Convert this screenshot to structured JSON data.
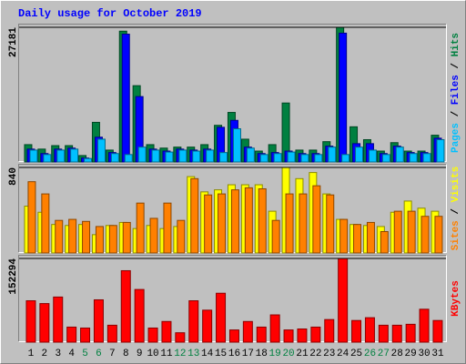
{
  "chart_data": [
    {
      "type": "bar",
      "title": "Daily usage for October 2019",
      "legend_separator": " / ",
      "ylim": [
        0,
        27181
      ],
      "yticks": [
        27181
      ],
      "grid": true,
      "series": [
        {
          "name": "Hits",
          "color": "#008040",
          "values": [
            3500,
            2600,
            3300,
            3300,
            1300,
            8000,
            2400,
            26400,
            15400,
            3500,
            2800,
            3000,
            3000,
            3500,
            7400,
            10000,
            4600,
            2200,
            3500,
            11900,
            2400,
            2400,
            4100,
            27181,
            7100,
            4500,
            2200,
            3900,
            2200,
            2200,
            5400
          ]
        },
        {
          "name": "Files",
          "color": "#0000ff",
          "values": [
            2600,
            1700,
            2600,
            2800,
            800,
            5000,
            1900,
            25800,
            13200,
            2600,
            2200,
            2600,
            2400,
            2600,
            7000,
            8400,
            3000,
            1700,
            1900,
            2200,
            1700,
            1700,
            3200,
            26000,
            3700,
            3700,
            1700,
            3200,
            1900,
            1900,
            4800
          ]
        },
        {
          "name": "Pages",
          "color": "#00c0ff",
          "values": [
            2400,
            1500,
            2400,
            2600,
            700,
            4600,
            1700,
            1500,
            3000,
            2400,
            2000,
            2400,
            2200,
            2400,
            1900,
            6700,
            2800,
            1500,
            1700,
            2000,
            1500,
            1500,
            3000,
            1500,
            3000,
            2400,
            1500,
            3000,
            1700,
            1700,
            4500
          ]
        }
      ]
    },
    {
      "type": "bar",
      "legend_separator": " / ",
      "ylim": [
        0,
        840
      ],
      "yticks": [
        840
      ],
      "grid": true,
      "series": [
        {
          "name": "Visits",
          "color": "#ffff00",
          "values": [
            460,
            400,
            280,
            270,
            280,
            180,
            270,
            300,
            240,
            270,
            240,
            260,
            750,
            600,
            620,
            670,
            670,
            670,
            410,
            840,
            730,
            790,
            580,
            330,
            280,
            270,
            260,
            400,
            510,
            440,
            410
          ]
        },
        {
          "name": "Sites",
          "color": "#ff8000",
          "values": [
            700,
            580,
            320,
            330,
            310,
            260,
            270,
            300,
            490,
            340,
            490,
            320,
            730,
            570,
            580,
            620,
            640,
            630,
            320,
            580,
            580,
            660,
            570,
            330,
            280,
            300,
            210,
            410,
            410,
            360,
            360
          ]
        }
      ]
    },
    {
      "type": "bar",
      "ylim": [
        0,
        152294
      ],
      "yticks": [
        152294
      ],
      "grid": true,
      "categories": [
        "1",
        "2",
        "3",
        "4",
        "5",
        "6",
        "7",
        "8",
        "9",
        "10",
        "11",
        "12",
        "13",
        "14",
        "15",
        "16",
        "17",
        "18",
        "19",
        "20",
        "21",
        "22",
        "23",
        "24",
        "25",
        "26",
        "27",
        "28",
        "29",
        "30",
        "31"
      ],
      "category_colors": [
        "#000000",
        "#000000",
        "#000000",
        "#000000",
        "#008040",
        "#008040",
        "#000000",
        "#000000",
        "#000000",
        "#000000",
        "#000000",
        "#008040",
        "#008040",
        "#000000",
        "#000000",
        "#000000",
        "#000000",
        "#000000",
        "#008040",
        "#008040",
        "#000000",
        "#000000",
        "#000000",
        "#000000",
        "#000000",
        "#008040",
        "#008040",
        "#000000",
        "#000000",
        "#000000",
        "#000000"
      ],
      "series": [
        {
          "name": "KBytes",
          "color": "#ff0000",
          "values": [
            75300,
            70200,
            82100,
            27400,
            25700,
            77000,
            30800,
            130000,
            95800,
            25700,
            37600,
            17100,
            75300,
            58200,
            89000,
            22200,
            37600,
            27400,
            49600,
            22200,
            24000,
            27400,
            41100,
            152294,
            39400,
            44500,
            30800,
            30800,
            32500,
            59900,
            39400
          ]
        }
      ]
    }
  ]
}
